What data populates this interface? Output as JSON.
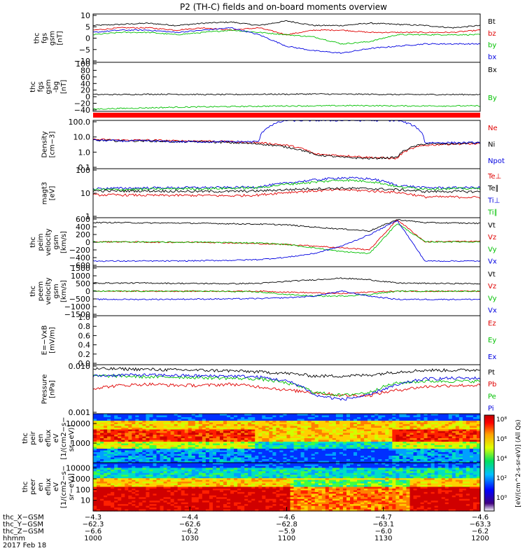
{
  "title": "P2 (TH-C) fields and on-board moments overview",
  "chart_data": [
    {
      "type": "line",
      "ylabel": [
        "thc",
        "fgs",
        "gsm",
        "[nT]"
      ],
      "yticks": [
        "10",
        "5",
        "0",
        "−5",
        "−10"
      ],
      "ylim": [
        -10,
        11
      ],
      "series": [
        {
          "name": "Bt",
          "color": "#000000",
          "y": [
            6,
            6.5,
            7,
            6,
            7,
            7.5,
            6,
            8,
            6,
            6,
            7,
            6.5,
            6,
            5,
            6
          ]
        },
        {
          "name": "bz",
          "color": "#e00000",
          "y": [
            4,
            5,
            5,
            4,
            5,
            4,
            5,
            2,
            4,
            4,
            3,
            3,
            3,
            3,
            4
          ]
        },
        {
          "name": "by",
          "color": "#00c000",
          "y": [
            2,
            3,
            3,
            2,
            3,
            4,
            3,
            2,
            1,
            -2,
            -1,
            2,
            2,
            2,
            2
          ]
        },
        {
          "name": "bx",
          "color": "#0000e0",
          "y": [
            3,
            4,
            4,
            3,
            4,
            5,
            2,
            -3,
            -5,
            -6,
            -4,
            -3,
            -2,
            -2,
            -2
          ]
        }
      ]
    },
    {
      "type": "line",
      "ylabel": [
        "thc",
        "fgs",
        "gsm",
        "-bg",
        "[nT]"
      ],
      "yticks": [
        "100",
        "80",
        "60",
        "40",
        "20",
        "0",
        "−20",
        "−40"
      ],
      "ylim": [
        -55,
        100
      ],
      "series": [
        {
          "name": "Bx",
          "color": "#000000",
          "y": [
            -2,
            -2,
            -1,
            -1,
            -2,
            -2,
            -1,
            -1,
            0,
            -1,
            -1,
            -2,
            -2,
            -2,
            -2
          ]
        },
        {
          "name": "By",
          "color": "#00c000",
          "y": [
            -48,
            -46,
            -44,
            -42,
            -41,
            -40,
            -39,
            -38,
            -38,
            -37,
            -37,
            -38,
            -38,
            -38,
            -38
          ]
        }
      ]
    },
    {
      "type": "line",
      "ylabel": [
        "Density",
        "[cm−3]"
      ],
      "yticks": [
        "100.0",
        "10.0",
        "1.0",
        "0.1"
      ],
      "ylim": [
        0.1,
        200
      ],
      "yscale": "log",
      "series": [
        {
          "name": "Ne",
          "color": "#e00000",
          "y": [
            10,
            9,
            9,
            8,
            8,
            7,
            6,
            4,
            1,
            0.8,
            0.6,
            0.5,
            4,
            5,
            5
          ]
        },
        {
          "name": "Ni",
          "color": "#000000",
          "y": [
            9,
            8,
            8,
            7,
            7,
            6,
            5,
            3,
            0.9,
            0.6,
            0.5,
            0.6,
            5,
            5,
            6
          ]
        },
        {
          "name": "Npot",
          "color": "#0000e0",
          "y": [
            9,
            8,
            8,
            7,
            7,
            7,
            7,
            200,
            200,
            200,
            200,
            200,
            6,
            6,
            6
          ]
        }
      ]
    },
    {
      "type": "line",
      "ylabel": [
        "magt3",
        "[eV]"
      ],
      "yticks": [
        "100",
        "10",
        "1"
      ],
      "ylim": [
        1,
        500
      ],
      "yscale": "log",
      "legend_only": [
        "Te⊥",
        "Te∥",
        "Ti⊥",
        "Ti∥"
      ],
      "series": [
        {
          "name": "Te⊥",
          "color": "#e00000",
          "y": [
            18,
            18,
            17,
            17,
            17,
            16,
            18,
            25,
            30,
            35,
            30,
            25,
            14,
            14,
            13
          ]
        },
        {
          "name": "Te∥",
          "color": "#000000",
          "y": [
            30,
            30,
            30,
            29,
            28,
            28,
            30,
            35,
            40,
            42,
            40,
            35,
            28,
            28,
            27
          ]
        },
        {
          "name": "Ti⊥",
          "color": "#0000e0",
          "y": [
            40,
            42,
            44,
            45,
            46,
            46,
            50,
            80,
            120,
            160,
            140,
            60,
            45,
            45,
            46
          ]
        },
        {
          "name": "Ti∥",
          "color": "#00c000",
          "y": [
            35,
            36,
            38,
            40,
            40,
            42,
            45,
            70,
            90,
            120,
            100,
            50,
            40,
            40,
            40
          ]
        }
      ]
    },
    {
      "type": "line",
      "ylabel": [
        "thc",
        "peim",
        "velocity",
        "gsm",
        "[km/s]"
      ],
      "yticks": [
        "600",
        "400",
        "200",
        "0",
        "−200",
        "−400",
        "−600"
      ],
      "ylim": [
        -650,
        650
      ],
      "series": [
        {
          "name": "Vt",
          "color": "#000000",
          "y": [
            520,
            520,
            510,
            510,
            500,
            490,
            480,
            460,
            400,
            350,
            300,
            600,
            520,
            510,
            500
          ]
        },
        {
          "name": "Vz",
          "color": "#e00000",
          "y": [
            10,
            10,
            0,
            0,
            0,
            -20,
            -40,
            -60,
            -100,
            -150,
            -200,
            600,
            10,
            20,
            20
          ]
        },
        {
          "name": "Vy",
          "color": "#00c000",
          "y": [
            10,
            10,
            5,
            0,
            0,
            -10,
            -20,
            -60,
            -150,
            -250,
            -300,
            500,
            10,
            10,
            10
          ]
        },
        {
          "name": "Vx",
          "color": "#0000e0",
          "y": [
            -500,
            -500,
            -500,
            -500,
            -490,
            -480,
            -460,
            -400,
            -300,
            -100,
            200,
            580,
            -500,
            -500,
            -500
          ]
        }
      ]
    },
    {
      "type": "line",
      "ylabel": [
        "thc",
        "peem",
        "velocity",
        "gsm",
        "[km/s]"
      ],
      "yticks": [
        "1500",
        "1000",
        "500",
        "0",
        "−500",
        "−1000",
        "−1500"
      ],
      "ylim": [
        -1500,
        1500
      ],
      "series": [
        {
          "name": "Vt",
          "color": "#000000",
          "y": [
            500,
            500,
            500,
            480,
            470,
            460,
            480,
            600,
            700,
            800,
            700,
            500,
            480,
            470,
            460
          ]
        },
        {
          "name": "Vz",
          "color": "#e00000",
          "y": [
            0,
            0,
            0,
            0,
            0,
            0,
            0,
            -50,
            -100,
            -150,
            -50,
            0,
            0,
            0,
            0
          ]
        },
        {
          "name": "Vy",
          "color": "#00c000",
          "y": [
            0,
            0,
            0,
            0,
            0,
            -20,
            -50,
            -200,
            -300,
            -300,
            -200,
            0,
            0,
            0,
            0
          ]
        },
        {
          "name": "Vx",
          "color": "#0000e0",
          "y": [
            -500,
            -500,
            -500,
            -490,
            -480,
            -470,
            -450,
            -400,
            -300,
            0,
            -300,
            -500,
            -500,
            -500,
            -500
          ]
        }
      ]
    },
    {
      "type": "line",
      "ylabel": [
        "E=−VxB",
        "[mV/m]"
      ],
      "yticks": [
        "1.0",
        "0.8",
        "0.6",
        "0.4",
        "0.2",
        "0.0"
      ],
      "ylim": [
        0,
        1
      ],
      "legend_only": [
        "Ez",
        "Ey",
        "Ex"
      ],
      "series": []
    },
    {
      "type": "line",
      "ylabel": [
        "Pressure",
        "[nPa]"
      ],
      "yticks": [
        "0.010",
        "0.001"
      ],
      "ylim": [
        0.0005,
        0.06
      ],
      "yscale": "log",
      "series": [
        {
          "name": "Pt",
          "color": "#000000",
          "y": [
            0.04,
            0.04,
            0.038,
            0.036,
            0.035,
            0.033,
            0.03,
            0.026,
            0.02,
            0.02,
            0.022,
            0.03,
            0.035,
            0.035,
            0.036
          ]
        },
        {
          "name": "Pb",
          "color": "#e00000",
          "y": [
            0.006,
            0.008,
            0.009,
            0.008,
            0.008,
            0.009,
            0.007,
            0.005,
            0.004,
            0.003,
            0.003,
            0.005,
            0.007,
            0.008,
            0.008
          ]
        },
        {
          "name": "Pe",
          "color": "#00c000",
          "y": [
            0.02,
            0.02,
            0.018,
            0.018,
            0.017,
            0.016,
            0.015,
            0.01,
            0.004,
            0.003,
            0.004,
            0.01,
            0.012,
            0.012,
            0.012
          ]
        },
        {
          "name": "Pi",
          "color": "#0000e0",
          "y": [
            0.02,
            0.022,
            0.022,
            0.021,
            0.02,
            0.02,
            0.018,
            0.012,
            0.003,
            0.002,
            0.003,
            0.008,
            0.015,
            0.016,
            0.016
          ]
        }
      ]
    },
    {
      "type": "heatmap",
      "ylabel": [
        "thc",
        "peir",
        "en",
        "eflux",
        "eV",
        "[1/(cm2−s−",
        "sr−eV)]"
      ],
      "yticks": [
        "10000",
        "1000"
      ]
    },
    {
      "type": "heatmap",
      "ylabel": [
        "thc",
        "peer",
        "en",
        "eflux",
        "eV",
        "[1/(cm2−s−",
        "sr−eV)]"
      ],
      "yticks": [
        "10000",
        "1000",
        "100",
        "10"
      ]
    }
  ],
  "colorbar": {
    "label": "[eV/(cm^2-s-sr-eV)] (All Qs)",
    "ticks": [
      "10⁸",
      "10⁶",
      "10⁴",
      "10²",
      "10⁰"
    ]
  },
  "xaxis": {
    "row_labels": [
      "thc_X−GSM",
      "thc_Y−GSM",
      "thc_Z−GSM",
      "hhmm",
      "2017 Feb 18"
    ],
    "columns": [
      [
        "−4.3",
        "−62.3",
        "−6.6",
        "1000"
      ],
      [
        "−4.4",
        "−62.6",
        "−6.2",
        "1030"
      ],
      [
        "−4.6",
        "−62.8",
        "−5.9",
        "1100"
      ],
      [
        "−4.7",
        "−63.1",
        "−6.0",
        "1130"
      ],
      [
        "−4.6",
        "−63.3",
        "−6.2",
        "1200"
      ]
    ]
  }
}
